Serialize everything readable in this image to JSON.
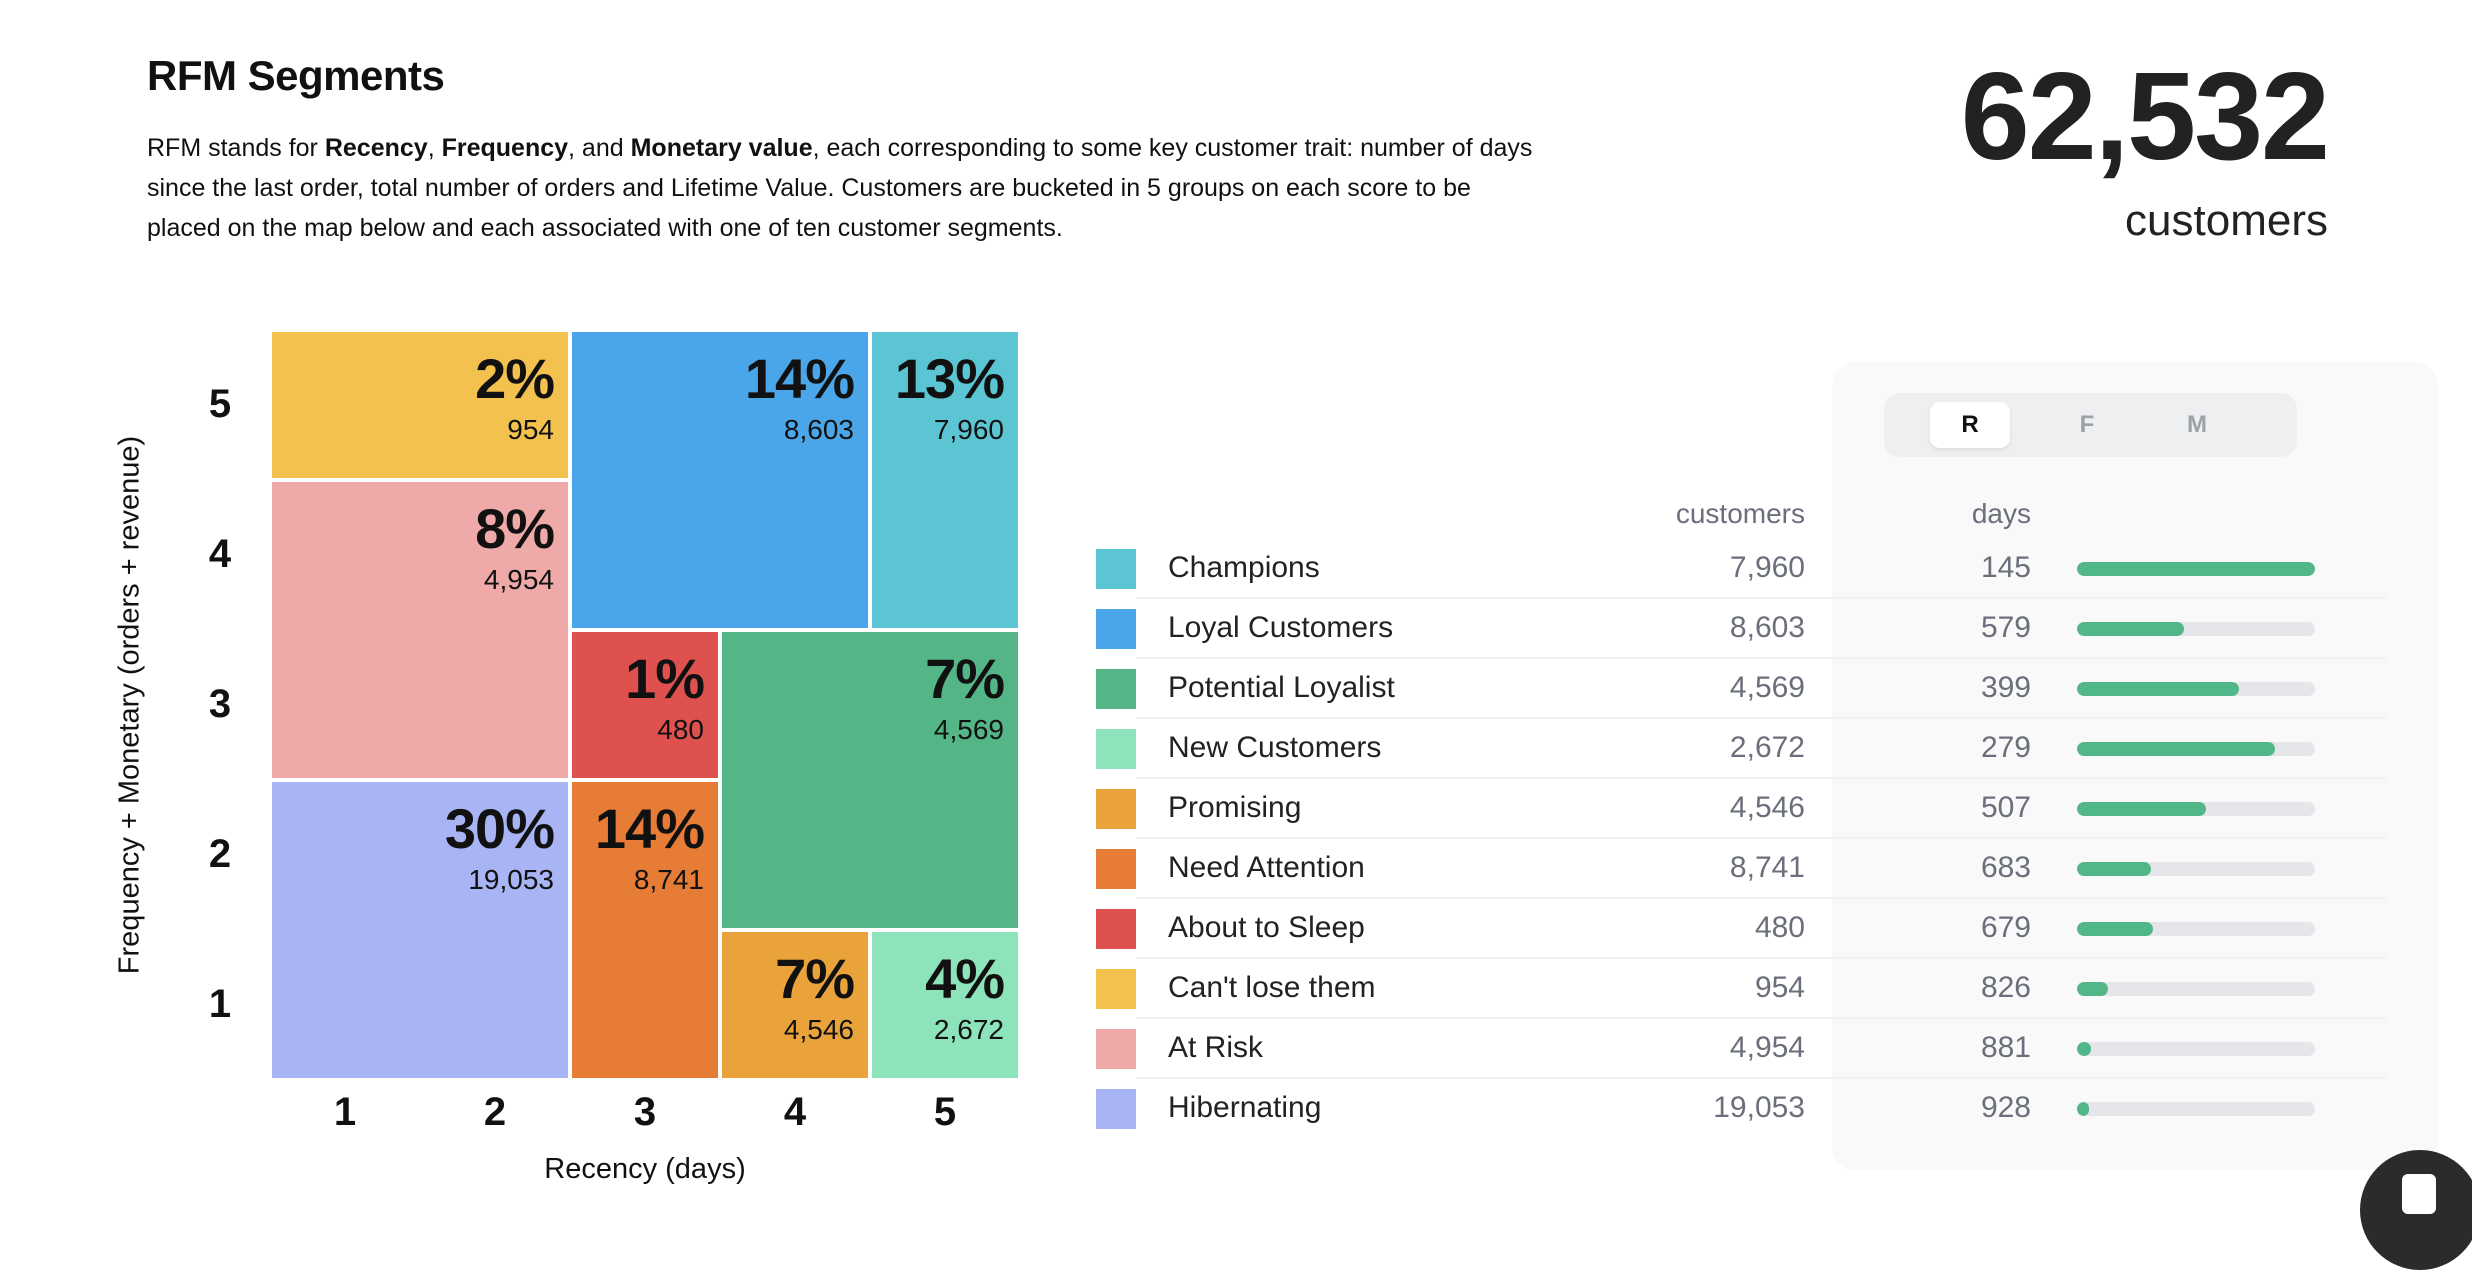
{
  "header": {
    "title": "RFM Segments",
    "description_parts": [
      "RFM stands for ",
      "Recency",
      ", ",
      "Frequency",
      ", and ",
      "Monetary value",
      ", each corresponding to some key customer trait: number of days since the last order, total number of orders and Lifetime Value. Customers are bucketed in 5 groups on each score to be placed on the map below and each associated with one of ten customer segments."
    ]
  },
  "summary": {
    "total": "62,532",
    "label": "customers"
  },
  "chart_data": {
    "type": "heatmap",
    "xlabel": "Recency (days)",
    "ylabel": "Frequency + Monetary (orders + revenue)",
    "x_ticks": [
      "1",
      "2",
      "3",
      "4",
      "5"
    ],
    "y_ticks": [
      "5",
      "4",
      "3",
      "2",
      "1"
    ],
    "cells": [
      {
        "segment": "Can't lose them",
        "pct": "2%",
        "count": "954",
        "x": [
          1,
          2
        ],
        "y": [
          5,
          5
        ],
        "color": "#F2C14E"
      },
      {
        "segment": "At Risk",
        "pct": "8%",
        "count": "4,954",
        "x": [
          1,
          2
        ],
        "y": [
          3,
          4
        ],
        "color": "#EFA9A9"
      },
      {
        "segment": "Hibernating",
        "pct": "30%",
        "count": "19,053",
        "x": [
          1,
          2
        ],
        "y": [
          1,
          2
        ],
        "color": "#A9B4F5"
      },
      {
        "segment": "Loyal Customers",
        "pct": "14%",
        "count": "8,603",
        "x": [
          3,
          4
        ],
        "y": [
          4,
          5
        ],
        "color": "#4AA6E8"
      },
      {
        "segment": "Champions",
        "pct": "13%",
        "count": "7,960",
        "x": [
          5,
          5
        ],
        "y": [
          4,
          5
        ],
        "color": "#5BC5D3"
      },
      {
        "segment": "About to Sleep",
        "pct": "1%",
        "count": "480",
        "x": [
          3,
          3
        ],
        "y": [
          3,
          3
        ],
        "color": "#DF514E"
      },
      {
        "segment": "Need Attention",
        "pct": "14%",
        "count": "8,741",
        "x": [
          3,
          3
        ],
        "y": [
          1,
          2
        ],
        "color": "#E77C37"
      },
      {
        "segment": "Potential Loyalist",
        "pct": "7%",
        "count": "4,569",
        "x": [
          4,
          5
        ],
        "y": [
          2,
          3
        ],
        "color": "#54B686"
      },
      {
        "segment": "Promising",
        "pct": "7%",
        "count": "4,546",
        "x": [
          4,
          4
        ],
        "y": [
          1,
          1
        ],
        "color": "#EAA23B"
      },
      {
        "segment": "New Customers",
        "pct": "4%",
        "count": "2,672",
        "x": [
          5,
          5
        ],
        "y": [
          1,
          1
        ],
        "color": "#8DE4BB"
      }
    ]
  },
  "panel": {
    "toggle": [
      "R",
      "F",
      "M"
    ],
    "active": "R",
    "col_customers": "customers",
    "col_days": "days",
    "rows": [
      {
        "label": "Champions",
        "customers": "7,960",
        "days": "145",
        "fill": 1.0,
        "color": "#5BC5D3"
      },
      {
        "label": "Loyal Customers",
        "customers": "8,603",
        "days": "579",
        "fill": 0.45,
        "color": "#4AA6E8"
      },
      {
        "label": "Potential Loyalist",
        "customers": "4,569",
        "days": "399",
        "fill": 0.68,
        "color": "#54B686"
      },
      {
        "label": "New Customers",
        "customers": "2,672",
        "days": "279",
        "fill": 0.83,
        "color": "#8DE4BB"
      },
      {
        "label": "Promising",
        "customers": "4,546",
        "days": "507",
        "fill": 0.54,
        "color": "#EAA23B"
      },
      {
        "label": "Need Attention",
        "customers": "8,741",
        "days": "683",
        "fill": 0.31,
        "color": "#E77C37"
      },
      {
        "label": "About to Sleep",
        "customers": "480",
        "days": "679",
        "fill": 0.32,
        "color": "#DF514E"
      },
      {
        "label": "Can't lose them",
        "customers": "954",
        "days": "826",
        "fill": 0.13,
        "color": "#F2C14E"
      },
      {
        "label": "At Risk",
        "customers": "4,954",
        "days": "881",
        "fill": 0.06,
        "color": "#EFA9A9"
      },
      {
        "label": "Hibernating",
        "customers": "19,053",
        "days": "928",
        "fill": 0.05,
        "color": "#A9B4F5"
      }
    ]
  }
}
